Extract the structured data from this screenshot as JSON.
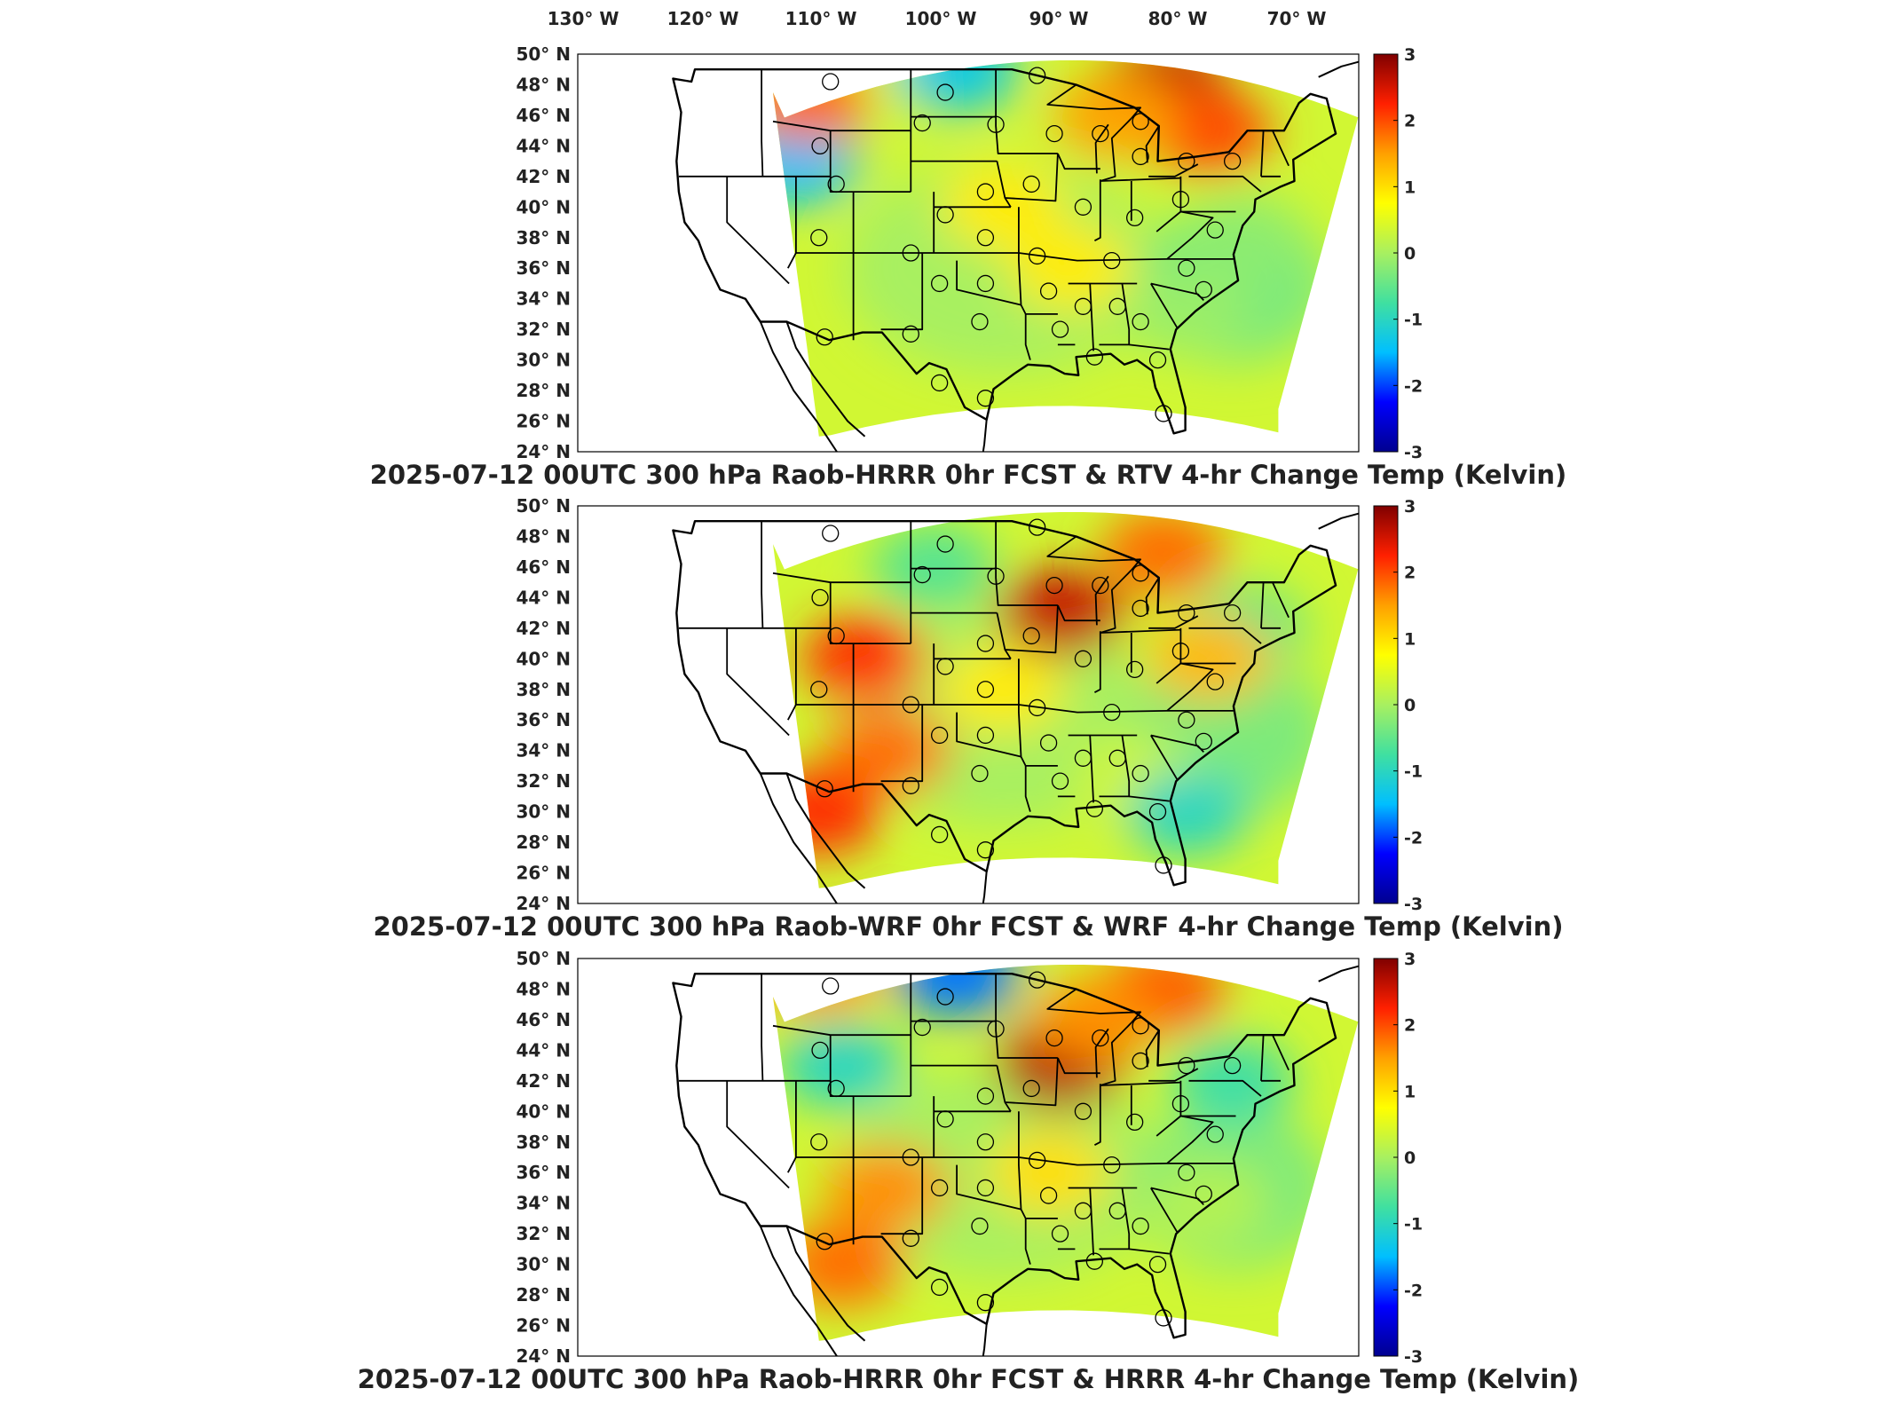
{
  "top_lon_labels": [
    "130° W",
    "120° W",
    "110° W",
    "100° W",
    "90° W",
    "80° W",
    "70° W"
  ],
  "lat_labels": [
    "50° N",
    "48° N",
    "46° N",
    "44° N",
    "42° N",
    "40° N",
    "38° N",
    "36° N",
    "34° N",
    "32° N",
    "30° N",
    "28° N",
    "26° N",
    "24° N"
  ],
  "colorbar": {
    "ticks": [
      "3",
      "2",
      "1",
      "0",
      "-1",
      "-2",
      "-3"
    ],
    "min": -3,
    "max": 3,
    "colors": [
      "#00008f",
      "#0000ff",
      "#00bfff",
      "#40e0a0",
      "#a8f060",
      "#ffff00",
      "#ffa000",
      "#ff2000",
      "#800000"
    ]
  },
  "panels": [
    {
      "title": "2025-07-12 00UTC 300 hPa Raob-HRRR 0hr FCST & RTV 4-hr Change Temp (Kelvin)",
      "hotspots": [
        {
          "lon": -82,
          "lat": 48,
          "value": 2.6
        },
        {
          "lon": -78,
          "lat": 45,
          "value": 2.0
        },
        {
          "lon": -86,
          "lat": 46,
          "value": 1.5
        },
        {
          "lon": -105,
          "lat": 49,
          "value": 0.4
        },
        {
          "lon": -114,
          "lat": 43,
          "value": -1.5
        },
        {
          "lon": -113,
          "lat": 47,
          "value": 1.8
        },
        {
          "lon": -100,
          "lat": 49,
          "value": -1.3
        },
        {
          "lon": -96,
          "lat": 40,
          "value": 0.9
        },
        {
          "lon": -75,
          "lat": 38,
          "value": -0.2
        },
        {
          "lon": -90,
          "lat": 36,
          "value": 0.9
        },
        {
          "lon": -80,
          "lat": 33,
          "value": -0.1
        }
      ]
    },
    {
      "title": "2025-07-12 00UTC 300 hPa Raob-WRF 0hr FCST & WRF 4-hr Change Temp (Kelvin)",
      "hotspots": [
        {
          "lon": -82,
          "lat": 47,
          "value": 1.8
        },
        {
          "lon": -91,
          "lat": 43,
          "value": 2.6
        },
        {
          "lon": -108,
          "lat": 40,
          "value": 2.2
        },
        {
          "lon": -106,
          "lat": 34,
          "value": 1.8
        },
        {
          "lon": -112,
          "lat": 30,
          "value": 2.2
        },
        {
          "lon": -84,
          "lat": 32,
          "value": 0.4
        },
        {
          "lon": -80,
          "lat": 30,
          "value": -1.0
        },
        {
          "lon": -75,
          "lat": 42,
          "value": -0.5
        },
        {
          "lon": -102,
          "lat": 46,
          "value": -0.6
        },
        {
          "lon": -96,
          "lat": 38,
          "value": 0.9
        },
        {
          "lon": -78,
          "lat": 40,
          "value": 1.3
        }
      ]
    },
    {
      "title": "2025-07-12 00UTC 300 hPa Raob-HRRR 0hr FCST & HRRR 4-hr Change Temp (Kelvin)",
      "hotspots": [
        {
          "lon": -82,
          "lat": 48,
          "value": 1.9
        },
        {
          "lon": -91,
          "lat": 43,
          "value": 2.7
        },
        {
          "lon": -110,
          "lat": 43,
          "value": -1.0
        },
        {
          "lon": -100,
          "lat": 49,
          "value": -1.8
        },
        {
          "lon": -112,
          "lat": 49,
          "value": 1.5
        },
        {
          "lon": -106,
          "lat": 35,
          "value": 1.6
        },
        {
          "lon": -110,
          "lat": 30,
          "value": 1.8
        },
        {
          "lon": -76,
          "lat": 42,
          "value": -0.8
        },
        {
          "lon": -78,
          "lat": 34,
          "value": 0.1
        },
        {
          "lon": -92,
          "lat": 36,
          "value": 1.0
        },
        {
          "lon": -88,
          "lat": 46,
          "value": 1.6
        }
      ]
    }
  ]
}
